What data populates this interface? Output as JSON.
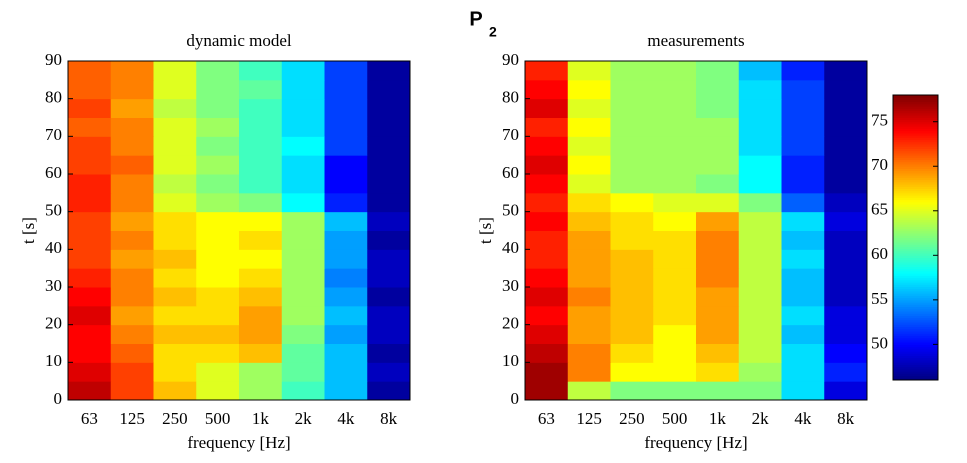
{
  "title": {
    "text": "P",
    "subscript": "2"
  },
  "colorbar": {
    "clim": [
      46,
      78
    ],
    "ticks": [
      50,
      55,
      60,
      65,
      70,
      75
    ],
    "colormap": "jet"
  },
  "chart_data": [
    {
      "type": "heatmap",
      "title": "dynamic model",
      "xlabel": "frequency [Hz]",
      "ylabel": "t [s]",
      "categories": [
        "63",
        "125",
        "250",
        "500",
        "1k",
        "2k",
        "4k",
        "8k"
      ],
      "ybins": [
        0,
        5,
        10,
        15,
        20,
        25,
        30,
        35,
        40,
        45,
        50,
        55,
        60,
        65,
        70,
        75,
        80,
        85,
        90
      ],
      "ylim": [
        0,
        90
      ],
      "yticks": [
        0,
        10,
        20,
        30,
        40,
        50,
        60,
        70,
        80,
        90
      ],
      "values": [
        [
          76,
          72,
          68,
          65,
          63,
          60,
          56,
          47
        ],
        [
          75,
          72,
          67,
          65,
          63,
          61,
          56,
          48
        ],
        [
          74,
          71,
          67,
          67,
          68,
          61,
          56,
          47
        ],
        [
          74,
          70,
          68,
          68,
          69,
          62,
          55,
          48
        ],
        [
          75,
          69,
          67,
          67,
          69,
          63,
          56,
          48
        ],
        [
          74,
          70,
          68,
          67,
          68,
          63,
          55,
          47
        ],
        [
          73,
          70,
          67,
          66,
          67,
          63,
          54,
          48
        ],
        [
          72,
          69,
          68,
          66,
          66,
          63,
          55,
          48
        ],
        [
          72,
          70,
          67,
          66,
          67,
          63,
          55,
          47
        ],
        [
          72,
          69,
          67,
          66,
          66,
          63,
          56,
          48
        ],
        [
          73,
          70,
          65,
          63,
          62,
          58,
          51,
          47
        ],
        [
          73,
          70,
          64,
          62,
          60,
          57,
          50,
          47
        ],
        [
          72,
          71,
          65,
          63,
          60,
          57,
          50,
          47
        ],
        [
          72,
          70,
          65,
          62,
          60,
          58,
          52,
          47
        ],
        [
          71,
          70,
          65,
          63,
          60,
          57,
          52,
          47
        ],
        [
          72,
          69,
          64,
          62,
          60,
          57,
          52,
          47
        ],
        [
          71,
          70,
          65,
          62,
          61,
          57,
          52,
          47
        ],
        [
          71,
          70,
          65,
          62,
          60,
          57,
          52,
          47
        ]
      ]
    },
    {
      "type": "heatmap",
      "title": "measurements",
      "xlabel": "frequency [Hz]",
      "ylabel": "t [s]",
      "categories": [
        "63",
        "125",
        "250",
        "500",
        "1k",
        "2k",
        "4k",
        "8k"
      ],
      "ybins": [
        0,
        5,
        10,
        15,
        20,
        25,
        30,
        35,
        40,
        45,
        50,
        55,
        60,
        65,
        70,
        75,
        80,
        85,
        90
      ],
      "ylim": [
        0,
        90
      ],
      "yticks": [
        0,
        10,
        20,
        30,
        40,
        50,
        60,
        70,
        80,
        90
      ],
      "values": [
        [
          77,
          64,
          62,
          62,
          62,
          62,
          57,
          49
        ],
        [
          77,
          70,
          66,
          66,
          67,
          63,
          57,
          51
        ],
        [
          76,
          70,
          67,
          66,
          68,
          64,
          57,
          50
        ],
        [
          75,
          69,
          68,
          66,
          69,
          64,
          56,
          49
        ],
        [
          74,
          69,
          68,
          67,
          69,
          64,
          57,
          49
        ],
        [
          75,
          70,
          68,
          67,
          69,
          64,
          56,
          48
        ],
        [
          74,
          69,
          68,
          67,
          70,
          64,
          56,
          48
        ],
        [
          73,
          69,
          68,
          67,
          70,
          64,
          57,
          48
        ],
        [
          73,
          69,
          67,
          67,
          70,
          64,
          56,
          48
        ],
        [
          74,
          68,
          67,
          66,
          69,
          64,
          57,
          49
        ],
        [
          73,
          67,
          66,
          65,
          65,
          62,
          53,
          48
        ],
        [
          74,
          65,
          63,
          63,
          62,
          58,
          51,
          47
        ],
        [
          75,
          66,
          63,
          63,
          63,
          58,
          51,
          47
        ],
        [
          74,
          65,
          63,
          63,
          63,
          57,
          52,
          47
        ],
        [
          73,
          66,
          63,
          63,
          63,
          57,
          52,
          47
        ],
        [
          75,
          65,
          63,
          63,
          62,
          57,
          52,
          47
        ],
        [
          74,
          66,
          63,
          63,
          62,
          57,
          52,
          47
        ],
        [
          73,
          65,
          63,
          63,
          62,
          56,
          51,
          47
        ]
      ]
    }
  ]
}
